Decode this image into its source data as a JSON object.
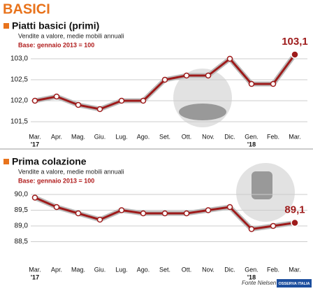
{
  "title": "BASICI",
  "chart_data": [
    {
      "type": "line",
      "title": "Piatti basici (primi)",
      "subtitle": "Vendite a valore, medie mobili annuali",
      "note": "Base: gennaio 2013 = 100",
      "categories": [
        "Mar.",
        "Apr.",
        "Mag.",
        "Giu.",
        "Lug.",
        "Ago.",
        "Set.",
        "Ott.",
        "Nov.",
        "Dic.",
        "Gen.",
        "Feb.",
        "Mar."
      ],
      "category_years": [
        "'17",
        null,
        null,
        null,
        null,
        null,
        null,
        null,
        null,
        null,
        "'18",
        null,
        null
      ],
      "values": [
        102.0,
        102.1,
        101.9,
        101.8,
        102.0,
        102.0,
        102.5,
        102.6,
        102.6,
        103.0,
        102.4,
        102.4,
        103.1
      ],
      "value_labels": [
        null,
        null,
        null,
        null,
        null,
        null,
        null,
        null,
        null,
        null,
        null,
        null,
        "103,1"
      ],
      "color": "#9e1b1b",
      "ylim": [
        101.4,
        103.3
      ],
      "yticks": [
        {
          "value": 101.5,
          "label": "101,5"
        },
        {
          "value": 102,
          "label": "102,0"
        },
        {
          "value": 102.5,
          "label": "102,5"
        },
        {
          "value": 103,
          "label": "103,0"
        }
      ],
      "grid": true
    },
    {
      "type": "line",
      "title": "Prima colazione",
      "subtitle": "Vendite a valore, medie mobili annuali",
      "note": "Base: gennaio 2013 = 100",
      "categories": [
        "Mar.",
        "Apr.",
        "Mag.",
        "Giu.",
        "Lug.",
        "Ago.",
        "Set.",
        "Ott.",
        "Nov.",
        "Dic.",
        "Gen.",
        "Feb.",
        "Mar."
      ],
      "category_years": [
        "'17",
        null,
        null,
        null,
        null,
        null,
        null,
        null,
        null,
        null,
        "'18",
        null,
        null
      ],
      "values": [
        89.9,
        89.6,
        89.4,
        89.2,
        89.5,
        89.4,
        89.4,
        89.4,
        89.5,
        89.6,
        88.9,
        89.0,
        89.1
      ],
      "value_labels": [
        null,
        null,
        null,
        null,
        null,
        null,
        null,
        null,
        null,
        null,
        null,
        null,
        "89,1"
      ],
      "color": "#9e1b1b",
      "ylim": [
        88.4,
        90.3
      ],
      "yticks": [
        {
          "value": 88.5,
          "label": "88,5"
        },
        {
          "value": 89,
          "label": "89,0"
        },
        {
          "value": 89.5,
          "label": "89,5"
        },
        {
          "value": 90,
          "label": "90,0"
        }
      ],
      "grid": true
    }
  ],
  "source": "Fonte Nielsen",
  "logo": "OSSERVA ITALIA"
}
